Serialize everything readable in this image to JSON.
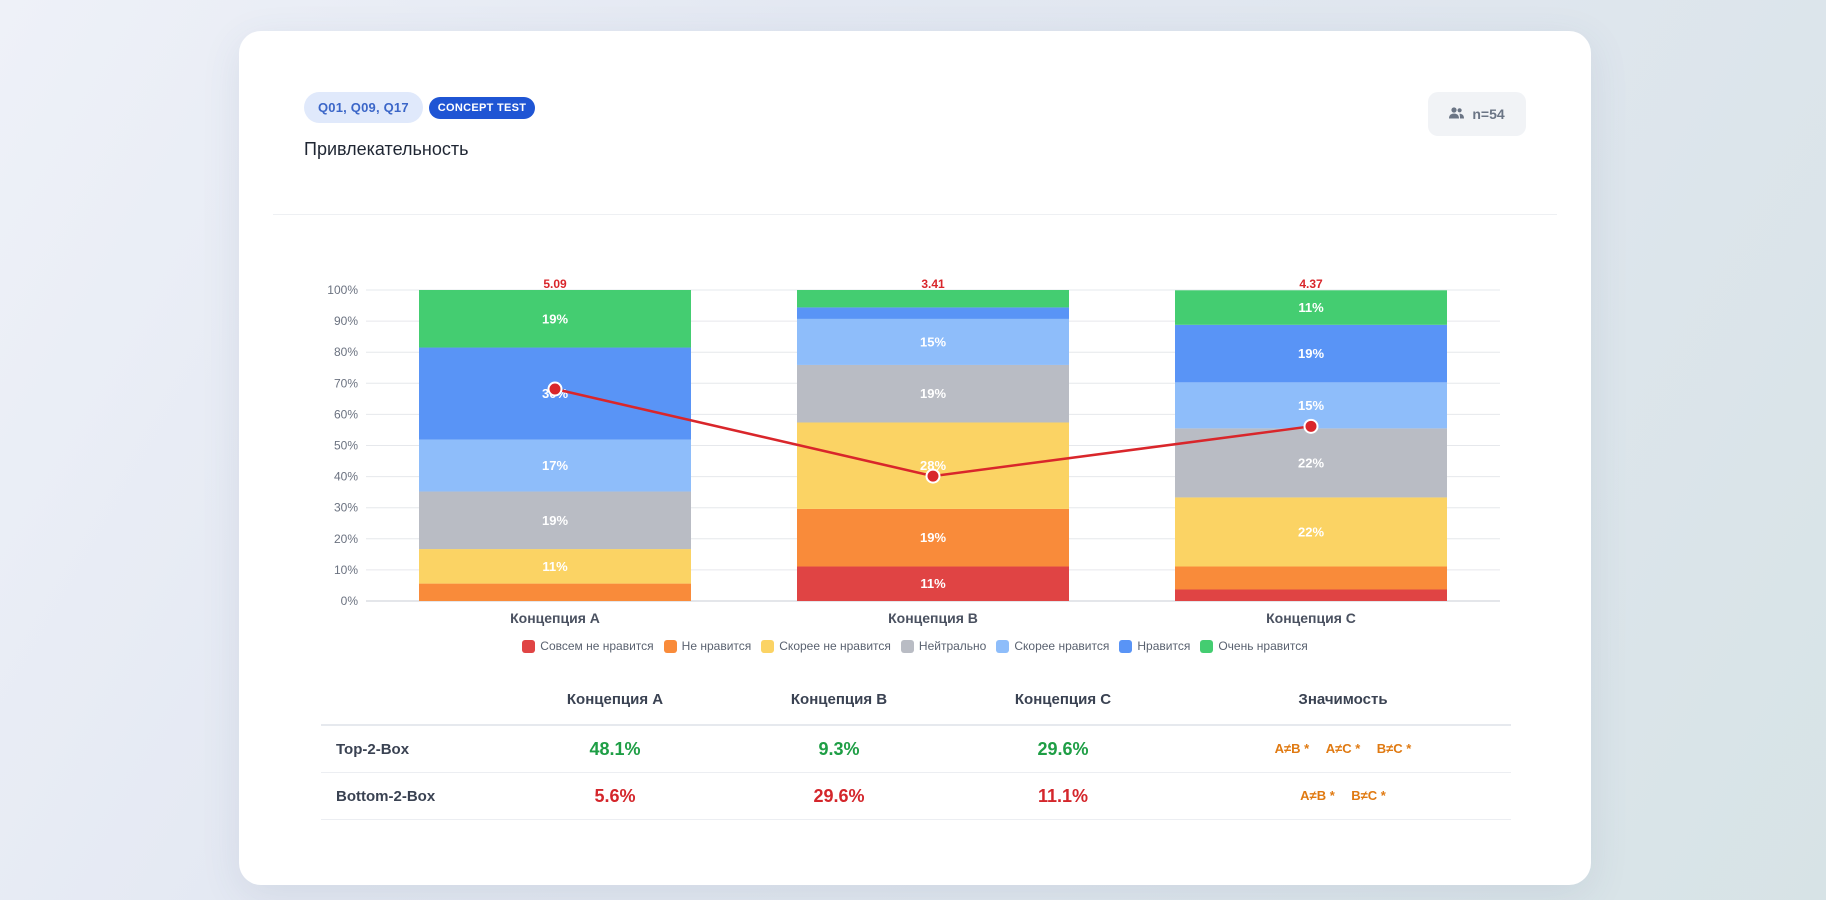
{
  "header": {
    "question_tag": "Q01, Q09, Q17",
    "type_tag": "CONCEPT TEST",
    "title": "Привлекательность",
    "sample_size": "n=54",
    "sample_icon": "users-icon"
  },
  "chart_data": {
    "type": "bar",
    "stacked": true,
    "categories": [
      "Концепция A",
      "Концепция B",
      "Концепция C"
    ],
    "ylim": [
      0,
      100
    ],
    "y_ticks": [
      "0%",
      "10%",
      "20%",
      "30%",
      "40%",
      "50%",
      "60%",
      "70%",
      "80%",
      "90%",
      "100%"
    ],
    "grid": true,
    "legend_position": "bottom",
    "series": [
      {
        "name": "Совсем не нравится",
        "color": "#e04444",
        "values": [
          0,
          11.1,
          3.7
        ],
        "labels": [
          "",
          "11%",
          ""
        ]
      },
      {
        "name": "Не нравится",
        "color": "#f98b3a",
        "values": [
          5.6,
          18.5,
          7.4
        ],
        "labels": [
          "",
          "19%",
          ""
        ]
      },
      {
        "name": "Скорее не нравится",
        "color": "#fbd364",
        "values": [
          11.1,
          27.8,
          22.2
        ],
        "labels": [
          "11%",
          "28%",
          "22%"
        ]
      },
      {
        "name": "Нейтрально",
        "color": "#b9bcc4",
        "values": [
          18.5,
          18.5,
          22.2
        ],
        "labels": [
          "19%",
          "19%",
          "22%"
        ]
      },
      {
        "name": "Скорее нравится",
        "color": "#8ebdfa",
        "values": [
          16.7,
          14.8,
          14.8
        ],
        "labels": [
          "17%",
          "15%",
          "15%"
        ]
      },
      {
        "name": "Нравится",
        "color": "#5994f6",
        "values": [
          29.6,
          3.7,
          18.5
        ],
        "labels": [
          "30%",
          "",
          "19%"
        ]
      },
      {
        "name": "Очень нравится",
        "color": "#44cd71",
        "values": [
          18.5,
          5.6,
          11.1
        ],
        "labels": [
          "19%",
          "",
          "11%"
        ]
      }
    ],
    "mean_line": {
      "color": "#d9262b",
      "values": [
        5.09,
        3.41,
        4.37
      ],
      "labels": [
        "5.09",
        "3.41",
        "4.37"
      ],
      "scale": [
        1,
        7
      ]
    }
  },
  "table": {
    "headers": [
      "",
      "Концепция A",
      "Концепция B",
      "Концепция C",
      "Значимость"
    ],
    "rows": [
      {
        "label": "Top-2-Box",
        "values": [
          "48.1%",
          "9.3%",
          "29.6%"
        ],
        "color": "green",
        "significance": [
          "A≠B *",
          "A≠C *",
          "B≠C *"
        ]
      },
      {
        "label": "Bottom-2-Box",
        "values": [
          "5.6%",
          "29.6%",
          "11.1%"
        ],
        "color": "red",
        "significance": [
          "A≠B *",
          "B≠C *"
        ]
      }
    ]
  }
}
